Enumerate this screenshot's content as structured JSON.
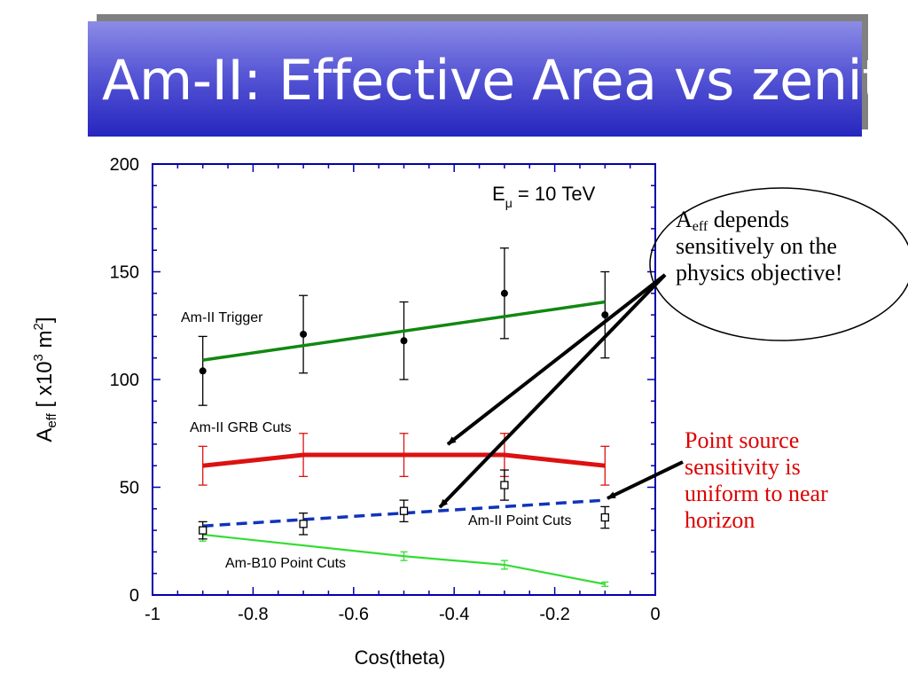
{
  "slide": {
    "title": "Am-II: Effective Area vs zenith"
  },
  "callouts": {
    "sensitivity": {
      "a": "A",
      "sub": "eff",
      "line1": " depends",
      "line2": "sensitively on the",
      "line3": "physics objective!"
    },
    "point_source": {
      "line1": "Point source",
      "line2": "sensitivity is",
      "line3": "uniform to near",
      "line4": "horizon"
    }
  },
  "colors": {
    "title_bg": "#3a3acc",
    "frame": "#0000aa",
    "trigger": "#118811",
    "grb": "#dd1111",
    "point": "#1133bb",
    "b10": "#33dd33",
    "callout_red": "#dd0000"
  },
  "chart_data": {
    "type": "line",
    "xlabel": "Cos(theta)",
    "ylabel": "A_eff [ x10^3 m^2]",
    "ylabel_parts": {
      "a": "A",
      "sub": "eff",
      "bracket": "[ x10",
      "exp3": "3",
      "unit": " m",
      "exp2": "2",
      "close": "]"
    },
    "annotation": {
      "e": "E",
      "sub": "μ",
      "value": "= 10 TeV"
    },
    "xlim": [
      -1,
      0
    ],
    "ylim": [
      0,
      200
    ],
    "x_ticks": [
      "-1",
      "-0.8",
      "-0.6",
      "-0.4",
      "-0.2",
      "0"
    ],
    "y_ticks": [
      "0",
      "50",
      "100",
      "150",
      "200"
    ],
    "series": [
      {
        "name": "Am-II Trigger",
        "marker": "filled-circle",
        "x": [
          -0.9,
          -0.7,
          -0.5,
          -0.3,
          -0.1
        ],
        "y": [
          104,
          121,
          118,
          140,
          130
        ],
        "err": [
          16,
          18,
          18,
          21,
          20
        ],
        "fit": {
          "x": [
            -0.9,
            -0.1
          ],
          "y": [
            109,
            136
          ]
        }
      },
      {
        "name": "Am-II GRB Cuts",
        "x": [
          -0.9,
          -0.7,
          -0.5,
          -0.3,
          -0.1
        ],
        "y": [
          60,
          65,
          65,
          65,
          60
        ],
        "err": [
          9,
          10,
          10,
          10,
          9
        ]
      },
      {
        "name": "Am-II Point Cuts",
        "marker": "open-square",
        "style": "dashed",
        "x": [
          -0.9,
          -0.7,
          -0.5,
          -0.3,
          -0.1
        ],
        "y": [
          30,
          33,
          39,
          51,
          36
        ],
        "err": [
          4,
          5,
          5,
          7,
          5
        ],
        "fit": {
          "x": [
            -0.9,
            -0.1
          ],
          "y": [
            32,
            44
          ]
        }
      },
      {
        "name": "Am-B10 Point Cuts",
        "x": [
          -0.9,
          -0.5,
          -0.3,
          -0.1
        ],
        "y": [
          28,
          18,
          14,
          5
        ],
        "err": [
          3,
          2,
          2,
          1
        ]
      }
    ]
  }
}
